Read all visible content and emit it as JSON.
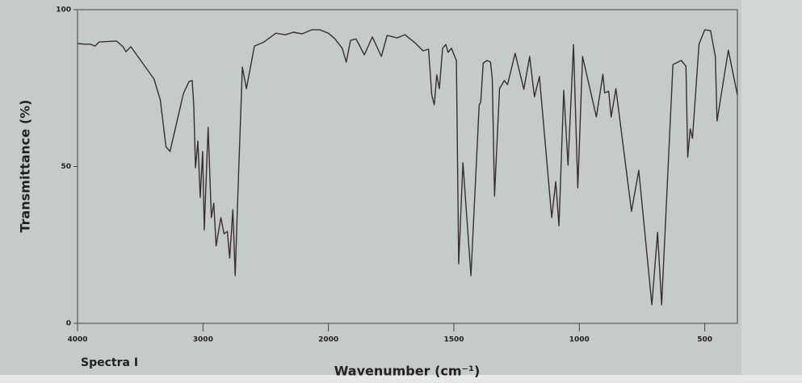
{
  "chart_data": {
    "type": "line",
    "caption": "Spectra I",
    "xlabel": "Wavenumber (cm⁻¹)",
    "ylabel": "Transmittance (%)",
    "xlim": [
      4000,
      370
    ],
    "x_scale_break": 2000,
    "x_scale_factor_below_break": 2,
    "xticks": [
      4000,
      3000,
      2000,
      1500,
      1000,
      500
    ],
    "ylim": [
      0,
      100
    ],
    "yticks": [
      0,
      50,
      100
    ],
    "series": [
      {
        "color": "#3a2e2e",
        "x": [
          4000,
          3943,
          3898,
          3860,
          3829,
          3689,
          3638,
          3613,
          3575,
          3390,
          3340,
          3295,
          3263,
          3156,
          3111,
          3086,
          3073,
          3060,
          3041,
          3022,
          3003,
          2990,
          2959,
          2933,
          2914,
          2895,
          2857,
          2832,
          2806,
          2787,
          2762,
          2743,
          2724,
          2686,
          2654,
          2590,
          2514,
          2419,
          2343,
          2279,
          2210,
          2133,
          2070,
          2000,
          1974,
          1945,
          1929,
          1912,
          1890,
          1857,
          1825,
          1789,
          1766,
          1727,
          1695,
          1656,
          1623,
          1601,
          1588,
          1578,
          1568,
          1558,
          1545,
          1532,
          1523,
          1510,
          1490,
          1481,
          1464,
          1432,
          1399,
          1393,
          1383,
          1367,
          1354,
          1347,
          1338,
          1318,
          1299,
          1286,
          1256,
          1221,
          1198,
          1179,
          1159,
          1110,
          1094,
          1081,
          1062,
          1045,
          1023,
          1006,
          987,
          932,
          906,
          899,
          883,
          873,
          854,
          792,
          763,
          711,
          688,
          672,
          627,
          594,
          575,
          568,
          558,
          549,
          523,
          500,
          477,
          458,
          451,
          406,
          370
        ],
        "values": [
          89.2,
          89,
          89,
          88.4,
          89.7,
          90,
          88.2,
          86.6,
          88.2,
          77.9,
          71.2,
          56.3,
          54.8,
          73.3,
          77.1,
          77.4,
          68.9,
          49.6,
          58.1,
          40.1,
          54.8,
          29.8,
          62.5,
          33.7,
          38.3,
          24.7,
          33.7,
          28.5,
          29.3,
          20.8,
          36.2,
          15.2,
          38.8,
          81.7,
          74.8,
          88.4,
          89.7,
          92.5,
          92,
          92.8,
          92.3,
          93.6,
          93.6,
          92.5,
          90.7,
          87.7,
          83.3,
          90.2,
          90.7,
          85.6,
          91.3,
          85.1,
          91.8,
          91,
          92,
          89.5,
          86.9,
          87.4,
          72.8,
          69.7,
          79.2,
          74.8,
          87.7,
          88.9,
          86.4,
          87.7,
          83.8,
          19,
          51.2,
          15.2,
          69.7,
          70.4,
          83,
          83.8,
          83.3,
          78.1,
          40.6,
          74.8,
          77.4,
          76.1,
          86.1,
          74.6,
          85.1,
          72.2,
          78.7,
          33.7,
          45.2,
          31.1,
          74.3,
          50.4,
          88.9,
          43.2,
          85.1,
          65.8,
          79.4,
          73.5,
          74,
          65.8,
          74.8,
          35.7,
          48.8,
          5.9,
          29,
          5.9,
          82.5,
          83.8,
          82,
          53,
          62,
          59,
          89,
          93.6,
          93.3,
          85.1,
          64.5,
          87.1,
          72.8
        ]
      }
    ]
  }
}
